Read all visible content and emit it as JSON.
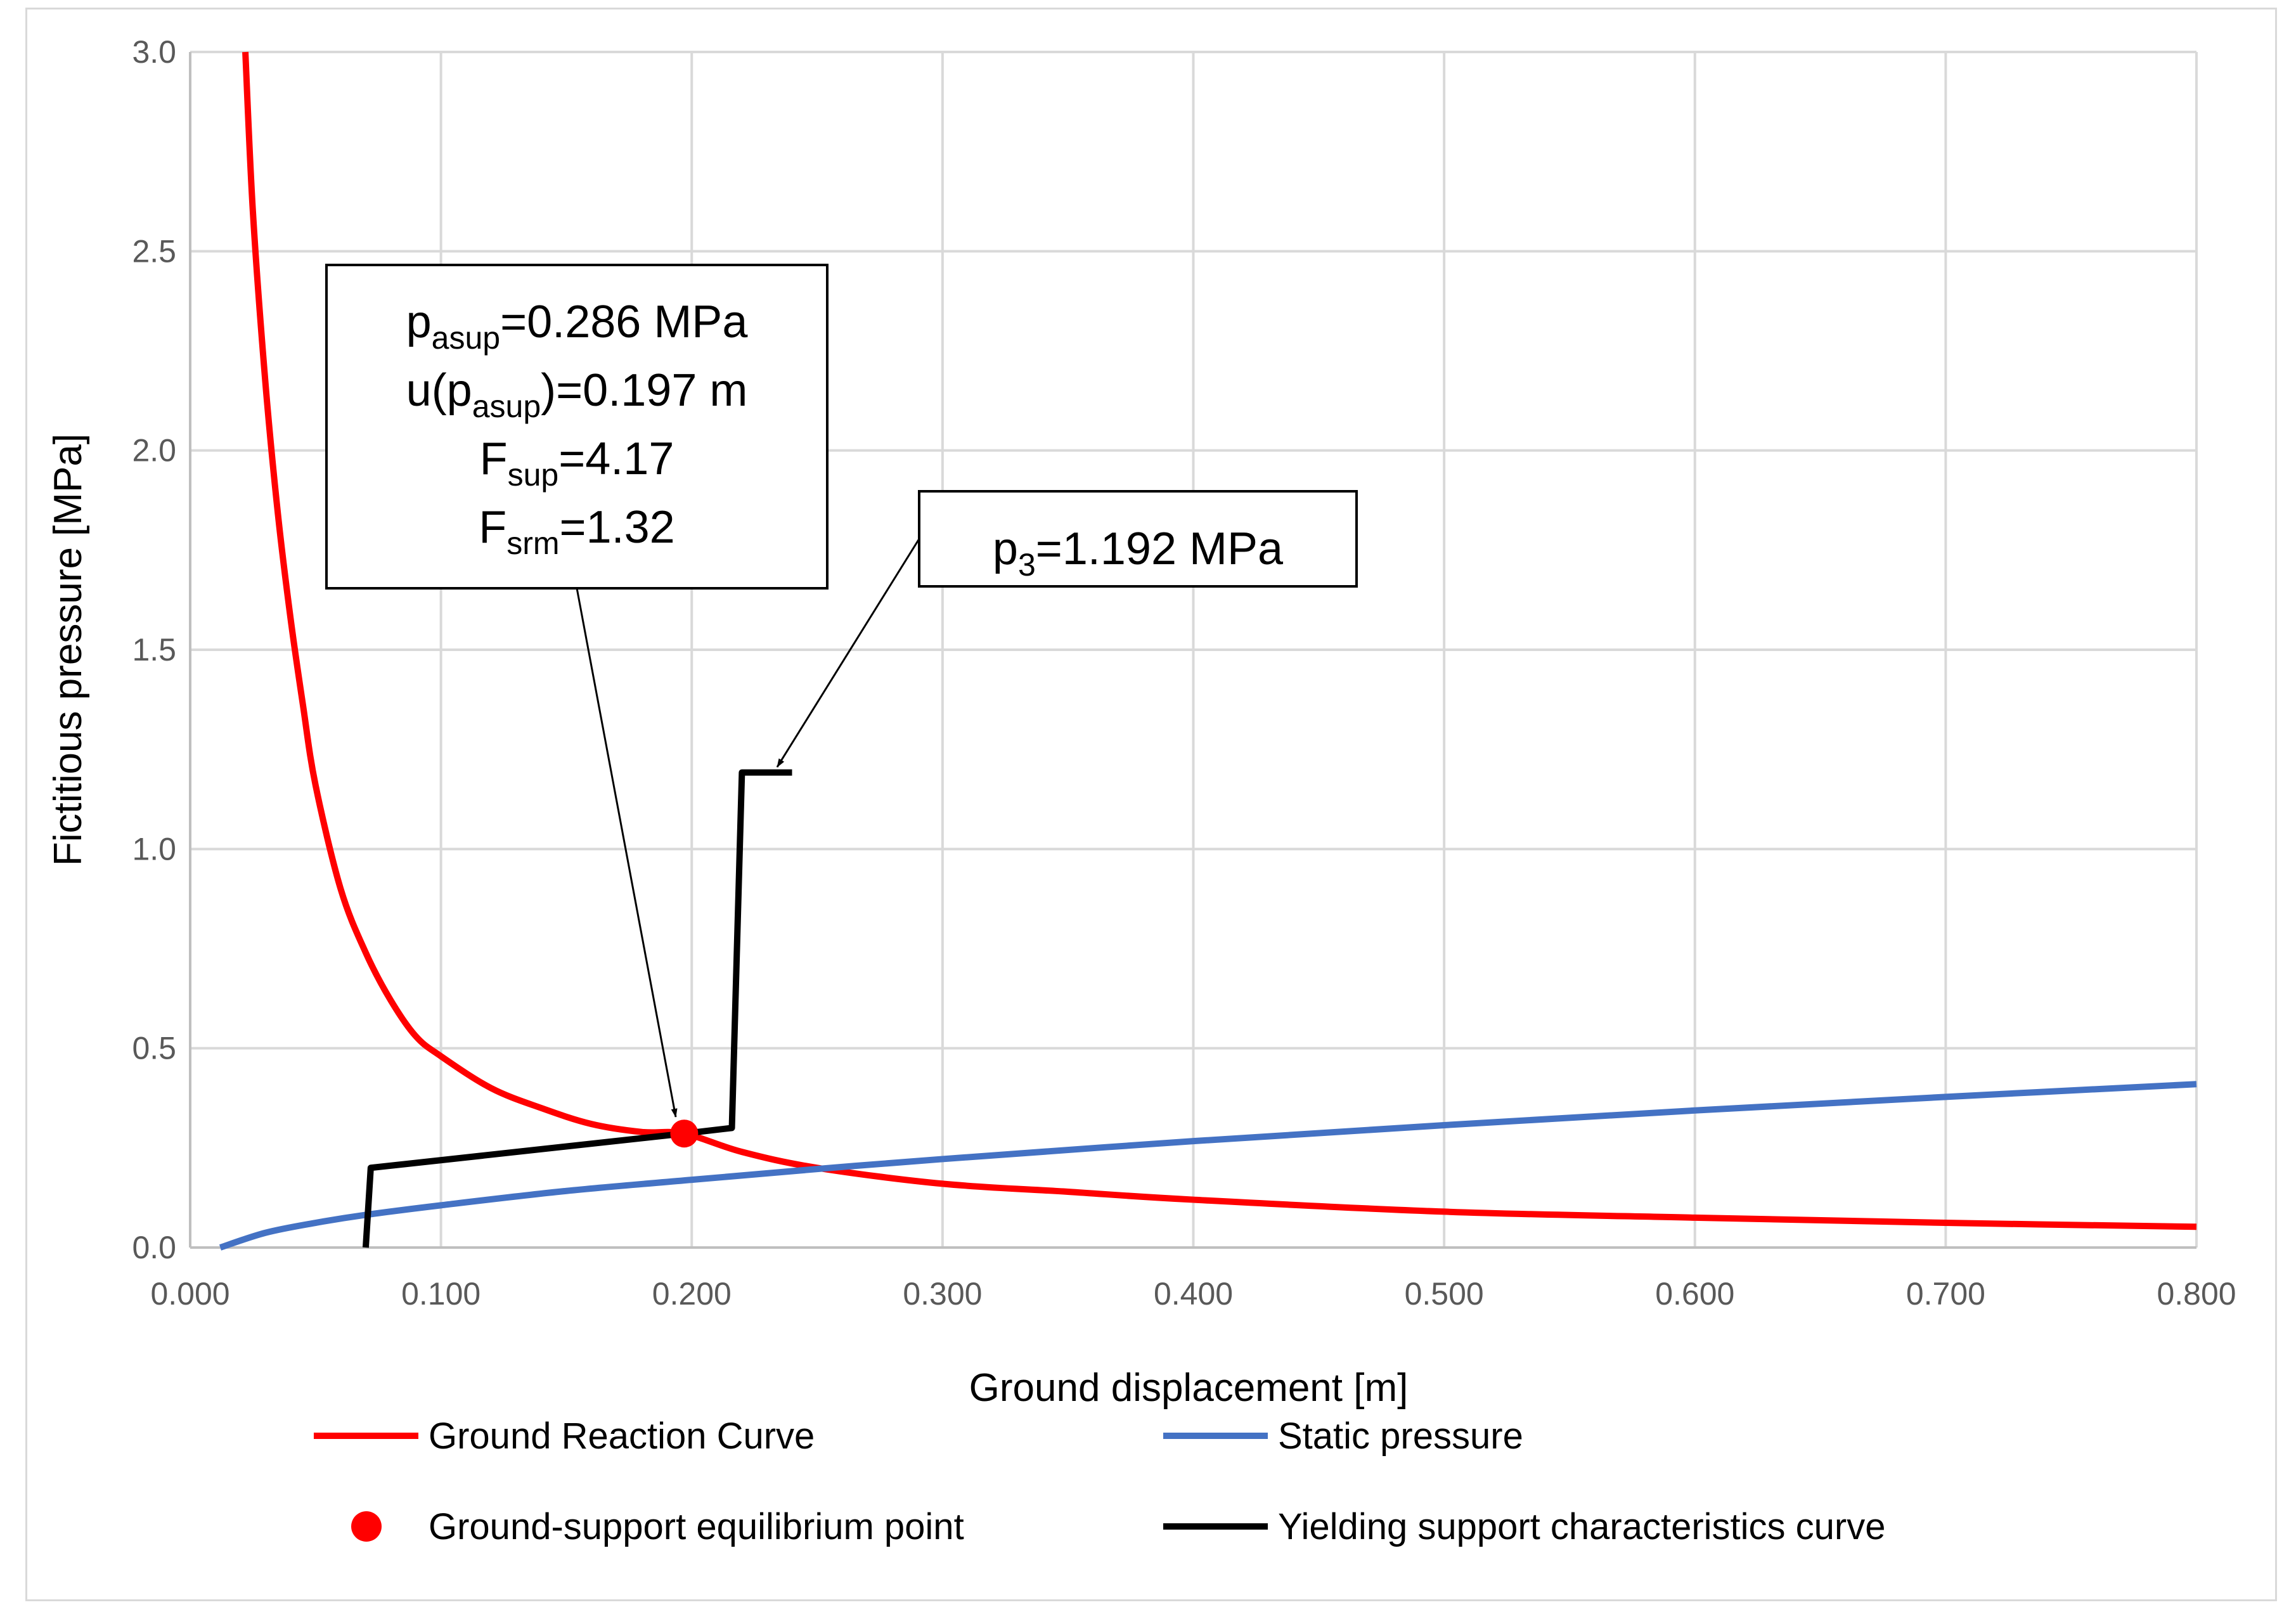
{
  "chart_data": {
    "type": "line",
    "xlabel": "Ground displacement [m]",
    "ylabel": "Fictitious pressure [MPa]",
    "xlim": [
      0,
      0.8
    ],
    "ylim": [
      0,
      3.0
    ],
    "grid": true,
    "legend_position": "bottom",
    "x_ticks": [
      "0.000",
      "0.100",
      "0.200",
      "0.300",
      "0.400",
      "0.500",
      "0.600",
      "0.700",
      "0.800"
    ],
    "y_ticks": [
      "0.0",
      "0.5",
      "1.0",
      "1.5",
      "2.0",
      "2.5",
      "3.0"
    ],
    "series": [
      {
        "name": "Ground Reaction Curve",
        "color": "#ff0000",
        "x": [
          0.022,
          0.025,
          0.03,
          0.035,
          0.04,
          0.045,
          0.05,
          0.06,
          0.07,
          0.08,
          0.09,
          0.1,
          0.12,
          0.14,
          0.16,
          0.18,
          0.197,
          0.22,
          0.25,
          0.3,
          0.35,
          0.4,
          0.5,
          0.6,
          0.7,
          0.8
        ],
        "y": [
          3.0,
          2.6,
          2.17,
          1.84,
          1.58,
          1.36,
          1.16,
          0.9,
          0.74,
          0.62,
          0.53,
          0.48,
          0.4,
          0.35,
          0.31,
          0.29,
          0.286,
          0.24,
          0.2,
          0.16,
          0.14,
          0.12,
          0.09,
          0.075,
          0.062,
          0.052
        ]
      },
      {
        "name": "Static pressure",
        "color": "#4472c4",
        "x": [
          0.012,
          0.03,
          0.05,
          0.07,
          0.1,
          0.15,
          0.2,
          0.25,
          0.3,
          0.4,
          0.5,
          0.6,
          0.7,
          0.8
        ],
        "y": [
          0.0,
          0.037,
          0.062,
          0.082,
          0.106,
          0.142,
          0.17,
          0.197,
          0.222,
          0.267,
          0.307,
          0.344,
          0.378,
          0.41
        ]
      },
      {
        "name": "Yielding support characteristics curve",
        "color": "#000000",
        "x": [
          0.07,
          0.072,
          0.197,
          0.216,
          0.22,
          0.24
        ],
        "y": [
          0.0,
          0.2,
          0.286,
          0.3,
          1.192,
          1.192
        ]
      }
    ],
    "points": [
      {
        "name": "Ground-support equilibrium point",
        "color": "#ff0000",
        "x": 0.197,
        "y": 0.286
      }
    ],
    "annotations": {
      "box1": {
        "line1": {
          "base": "p",
          "sub": "asup",
          "rest": "=0.286 MPa"
        },
        "line2": {
          "pre": "u(p",
          "sub": "asup",
          "rest": ")=0.197 m"
        },
        "line3": {
          "base": "F",
          "sub": "sup",
          "rest": "=4.17"
        },
        "line4": {
          "base": "F",
          "sub": "srm",
          "rest": "=1.32"
        },
        "arrow_target": {
          "x": 0.197,
          "y": 0.286
        }
      },
      "box2": {
        "line1": {
          "base": "p",
          "sub": "3",
          "rest": "=1.192 MPa"
        },
        "arrow_target": {
          "x": 0.23,
          "y": 1.192
        }
      }
    }
  },
  "legend": {
    "grc": "Ground Reaction Curve",
    "static": "Static pressure",
    "equilibrium": "Ground-support equilibrium point",
    "yielding": "Yielding support characteristics curve"
  }
}
